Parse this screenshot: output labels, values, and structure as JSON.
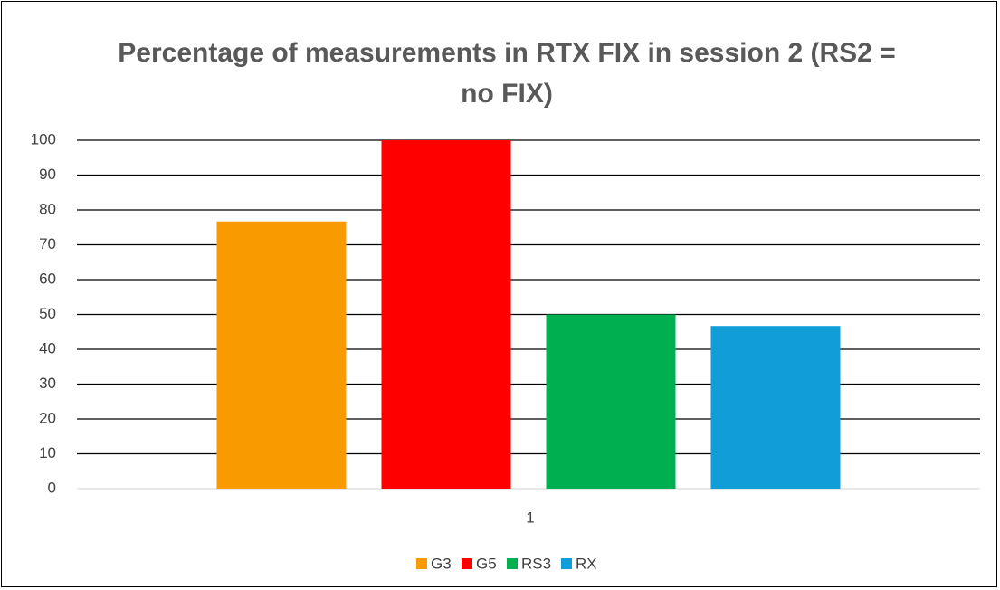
{
  "chart_data": {
    "type": "bar",
    "title": "Percentage of measurements in RTX FIX in session 2 (RS2 = no FIX)",
    "categories": [
      "1"
    ],
    "series": [
      {
        "name": "G3",
        "color": "#f99b00",
        "values": [
          76.7
        ]
      },
      {
        "name": "G5",
        "color": "#ff0000",
        "values": [
          100
        ]
      },
      {
        "name": "RS3",
        "color": "#00b050",
        "values": [
          50
        ]
      },
      {
        "name": "RX",
        "color": "#119ed8",
        "values": [
          46.7
        ]
      }
    ],
    "ylim": [
      0,
      100
    ],
    "yticks": [
      0,
      10,
      20,
      30,
      40,
      50,
      60,
      70,
      80,
      90,
      100
    ],
    "grid": true,
    "legend": "bottom"
  }
}
